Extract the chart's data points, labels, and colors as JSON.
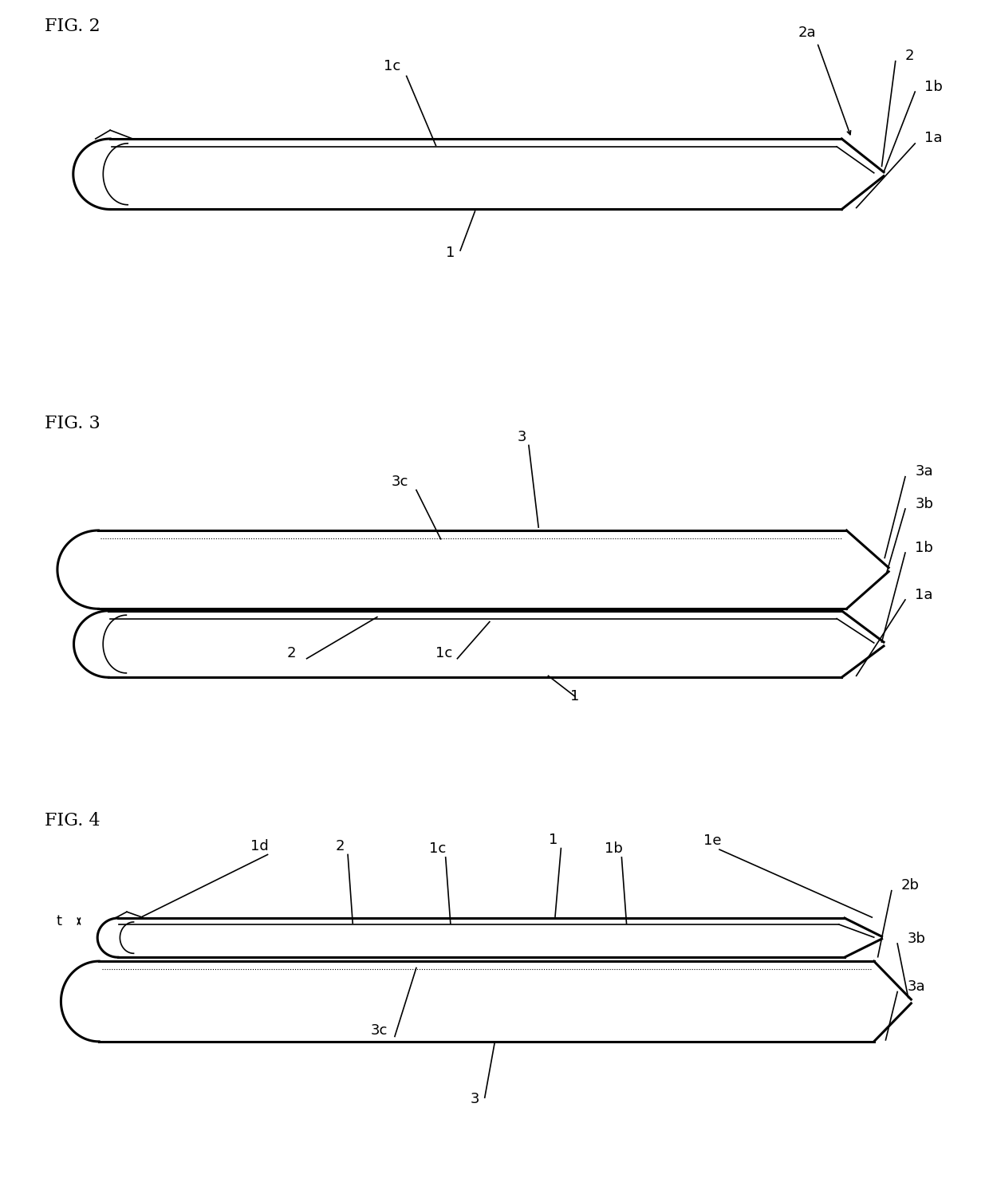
{
  "fig2": {
    "title": "FIG. 2"
  },
  "fig3": {
    "title": "FIG. 3"
  },
  "fig4": {
    "title": "FIG. 4"
  },
  "line_color": "#000000",
  "bg_color": "#ffffff",
  "font_size": 13,
  "title_font_size": 16
}
